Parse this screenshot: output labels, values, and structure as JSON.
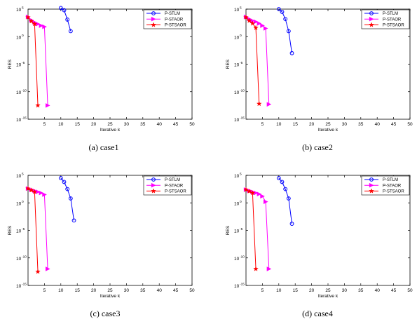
{
  "chart_data": [
    {
      "type": "line",
      "caption": "(a)  case1",
      "xlabel": "Iterative k",
      "ylabel": "RES",
      "xlim": [
        0,
        50
      ],
      "ylim": [
        -15,
        5
      ],
      "y_scale": "log10",
      "xticks": [
        "5",
        "10",
        "15",
        "20",
        "25",
        "30",
        "35",
        "40",
        "45",
        "50"
      ],
      "yticks": [
        {
          "base": "10",
          "exp": "5",
          "v": 5
        },
        {
          "base": "10",
          "exp": "0",
          "v": 0
        },
        {
          "base": "10",
          "exp": "-5",
          "v": -5
        },
        {
          "base": "10",
          "exp": "-10",
          "v": -10
        },
        {
          "base": "10",
          "exp": "-15",
          "v": -15
        }
      ],
      "legend_position": "top-right",
      "series": [
        {
          "name": "P-STLM",
          "color": "#0000ff",
          "marker": "circle",
          "points": [
            [
              10,
              5.2
            ],
            [
              11,
              4.8
            ],
            [
              12,
              3.1
            ],
            [
              13,
              1.0
            ]
          ]
        },
        {
          "name": "P-STAOR",
          "color": "#ff00ff",
          "marker": "triangle-right",
          "points": [
            [
              0,
              3.6
            ],
            [
              1,
              3.0
            ],
            [
              2,
              2.6
            ],
            [
              3,
              2.3
            ],
            [
              4,
              2.0
            ],
            [
              5,
              1.8
            ],
            [
              6,
              -12.5
            ]
          ]
        },
        {
          "name": "P-STSAOR",
          "color": "#ff0000",
          "marker": "star",
          "points": [
            [
              0,
              3.5
            ],
            [
              1,
              2.8
            ],
            [
              2,
              2.3
            ],
            [
              3,
              -12.5
            ]
          ]
        }
      ]
    },
    {
      "type": "line",
      "caption": "(b)  case2",
      "xlabel": "Iterative k",
      "ylabel": "RES",
      "xlim": [
        0,
        50
      ],
      "ylim": [
        -15,
        5
      ],
      "y_scale": "log10",
      "xticks": [
        "5",
        "10",
        "15",
        "20",
        "25",
        "30",
        "35",
        "40",
        "45",
        "50"
      ],
      "yticks": [
        {
          "base": "10",
          "exp": "5",
          "v": 5
        },
        {
          "base": "10",
          "exp": "0",
          "v": 0
        },
        {
          "base": "10",
          "exp": "-5",
          "v": -5
        },
        {
          "base": "10",
          "exp": "-10",
          "v": -10
        },
        {
          "base": "10",
          "exp": "-15",
          "v": -15
        }
      ],
      "legend_position": "top-right",
      "series": [
        {
          "name": "P-STLM",
          "color": "#0000ff",
          "marker": "circle",
          "points": [
            [
              10,
              5.0
            ],
            [
              11,
              4.5
            ],
            [
              12,
              3.2
            ],
            [
              13,
              1.0
            ],
            [
              14,
              -3.0
            ]
          ]
        },
        {
          "name": "P-STAOR",
          "color": "#ff00ff",
          "marker": "triangle-right",
          "points": [
            [
              0,
              3.6
            ],
            [
              1,
              3.2
            ],
            [
              2,
              2.9
            ],
            [
              3,
              2.7
            ],
            [
              4,
              2.4
            ],
            [
              5,
              2.0
            ],
            [
              6,
              1.5
            ],
            [
              7,
              -12.3
            ]
          ]
        },
        {
          "name": "P-STSAOR",
          "color": "#ff0000",
          "marker": "star",
          "points": [
            [
              0,
              3.5
            ],
            [
              1,
              2.9
            ],
            [
              2,
              2.4
            ],
            [
              3,
              1.6
            ],
            [
              4,
              -12.2
            ]
          ]
        }
      ]
    },
    {
      "type": "line",
      "caption": "(c)  case3",
      "xlabel": "Iterative k",
      "ylabel": "RES",
      "xlim": [
        0,
        50
      ],
      "ylim": [
        -15,
        5
      ],
      "y_scale": "log10",
      "xticks": [
        "5",
        "10",
        "15",
        "20",
        "25",
        "30",
        "35",
        "40",
        "45",
        "50"
      ],
      "yticks": [
        {
          "base": "10",
          "exp": "5",
          "v": 5
        },
        {
          "base": "10",
          "exp": "0",
          "v": 0
        },
        {
          "base": "10",
          "exp": "-5",
          "v": -5
        },
        {
          "base": "10",
          "exp": "-10",
          "v": -10
        },
        {
          "base": "10",
          "exp": "-15",
          "v": -15
        }
      ],
      "legend_position": "top-right",
      "series": [
        {
          "name": "P-STLM",
          "color": "#0000ff",
          "marker": "circle",
          "points": [
            [
              10,
              4.5
            ],
            [
              11,
              3.8
            ],
            [
              12,
              2.5
            ],
            [
              13,
              0.8
            ],
            [
              14,
              -3.2
            ]
          ]
        },
        {
          "name": "P-STAOR",
          "color": "#ff00ff",
          "marker": "triangle-right",
          "points": [
            [
              0,
              2.6
            ],
            [
              1,
              2.4
            ],
            [
              2,
              2.2
            ],
            [
              3,
              2.0
            ],
            [
              4,
              1.8
            ],
            [
              5,
              1.5
            ],
            [
              6,
              -12.0
            ]
          ]
        },
        {
          "name": "P-STSAOR",
          "color": "#ff0000",
          "marker": "star",
          "points": [
            [
              0,
              2.6
            ],
            [
              1,
              2.3
            ],
            [
              2,
              2.0
            ],
            [
              3,
              -12.5
            ]
          ]
        }
      ]
    },
    {
      "type": "line",
      "caption": "(d)  case4",
      "xlabel": "Iterative k",
      "ylabel": "RES",
      "xlim": [
        0,
        50
      ],
      "ylim": [
        -15,
        5
      ],
      "y_scale": "log10",
      "xticks": [
        "5",
        "10",
        "15",
        "20",
        "25",
        "30",
        "35",
        "40",
        "45",
        "50"
      ],
      "yticks": [
        {
          "base": "10",
          "exp": "5",
          "v": 5
        },
        {
          "base": "10",
          "exp": "0",
          "v": 0
        },
        {
          "base": "10",
          "exp": "-5",
          "v": -5
        },
        {
          "base": "10",
          "exp": "-10",
          "v": -10
        },
        {
          "base": "10",
          "exp": "-15",
          "v": -15
        }
      ],
      "legend_position": "top-right",
      "series": [
        {
          "name": "P-STLM",
          "color": "#0000ff",
          "marker": "circle",
          "points": [
            [
              10,
              4.5
            ],
            [
              11,
              3.8
            ],
            [
              12,
              2.5
            ],
            [
              13,
              0.8
            ],
            [
              14,
              -3.8
            ]
          ]
        },
        {
          "name": "P-STAOR",
          "color": "#ff00ff",
          "marker": "triangle-right",
          "points": [
            [
              0,
              2.4
            ],
            [
              1,
              2.2
            ],
            [
              2,
              2.0
            ],
            [
              3,
              1.8
            ],
            [
              4,
              1.6
            ],
            [
              5,
              1.2
            ],
            [
              6,
              0.2
            ],
            [
              7,
              -12.0
            ]
          ]
        },
        {
          "name": "P-STSAOR",
          "color": "#ff0000",
          "marker": "star",
          "points": [
            [
              0,
              2.4
            ],
            [
              1,
              2.1
            ],
            [
              2,
              1.8
            ],
            [
              3,
              -12.0
            ]
          ]
        }
      ]
    }
  ]
}
